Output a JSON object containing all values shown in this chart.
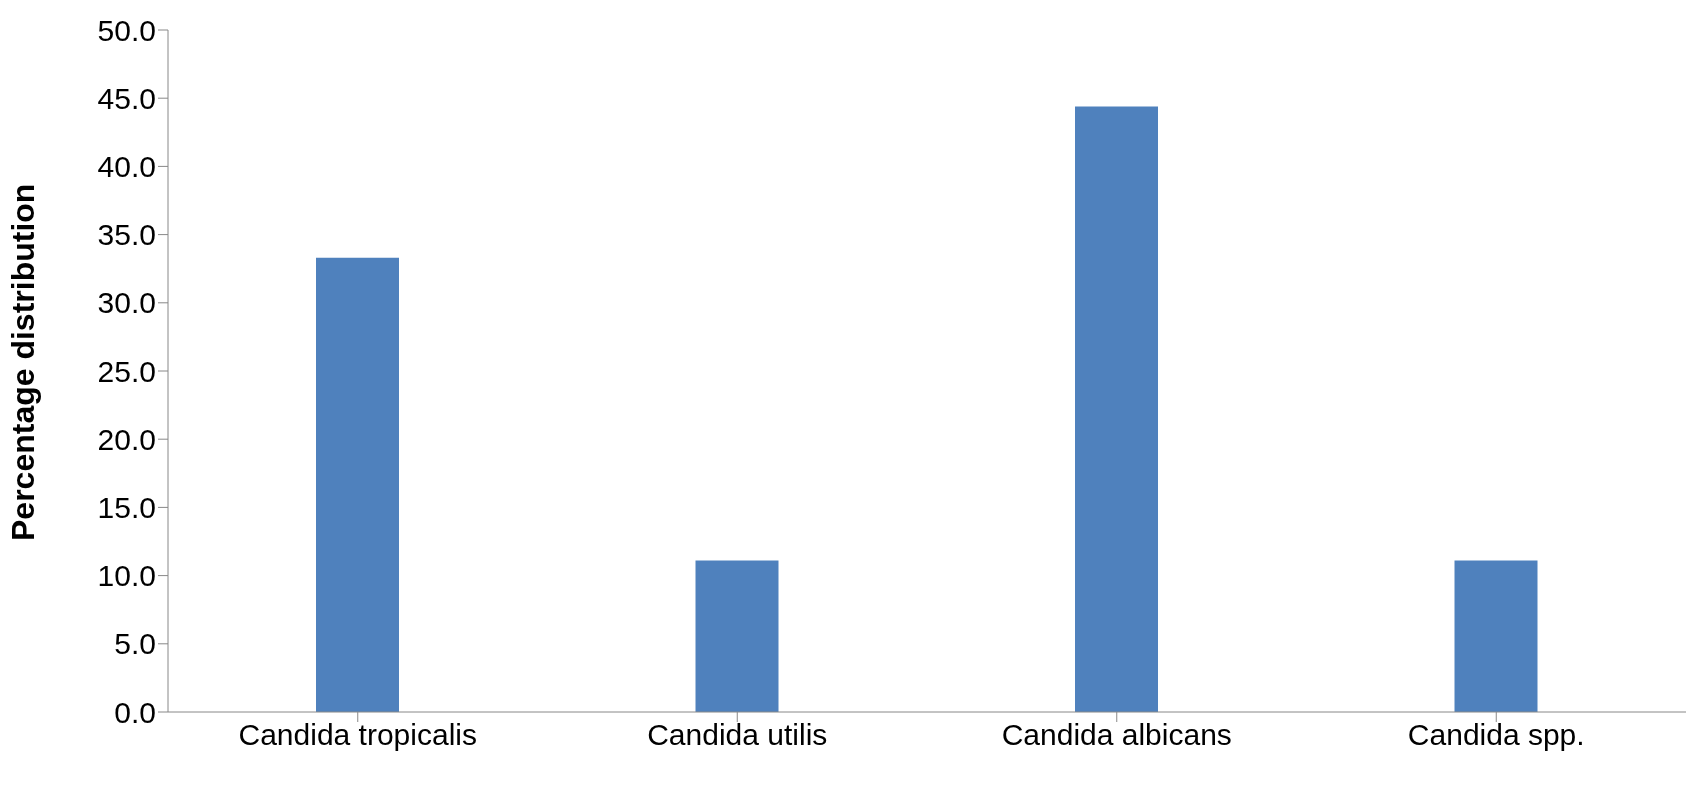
{
  "chart_data": {
    "type": "bar",
    "ylabel": "Percentage distribution",
    "categories": [
      "Candida tropicalis",
      "Candida utilis",
      "Candida albicans",
      "Candida spp."
    ],
    "values": [
      33.3,
      11.1,
      44.4,
      11.1
    ],
    "color": "#4f81bd",
    "ylim": [
      0,
      50
    ],
    "yticks": [
      {
        "value": 0,
        "label": "0.0"
      },
      {
        "value": 5,
        "label": "5.0"
      },
      {
        "value": 10,
        "label": "10.0"
      },
      {
        "value": 15,
        "label": "15.0"
      },
      {
        "value": 20,
        "label": "20.0"
      },
      {
        "value": 25,
        "label": "25.0"
      },
      {
        "value": 30,
        "label": "30.0"
      },
      {
        "value": 35,
        "label": "35.0"
      },
      {
        "value": 40,
        "label": "40.0"
      },
      {
        "value": 45,
        "label": "45.0"
      },
      {
        "value": 50,
        "label": "50.0"
      }
    ],
    "grid": false,
    "legend": false
  }
}
